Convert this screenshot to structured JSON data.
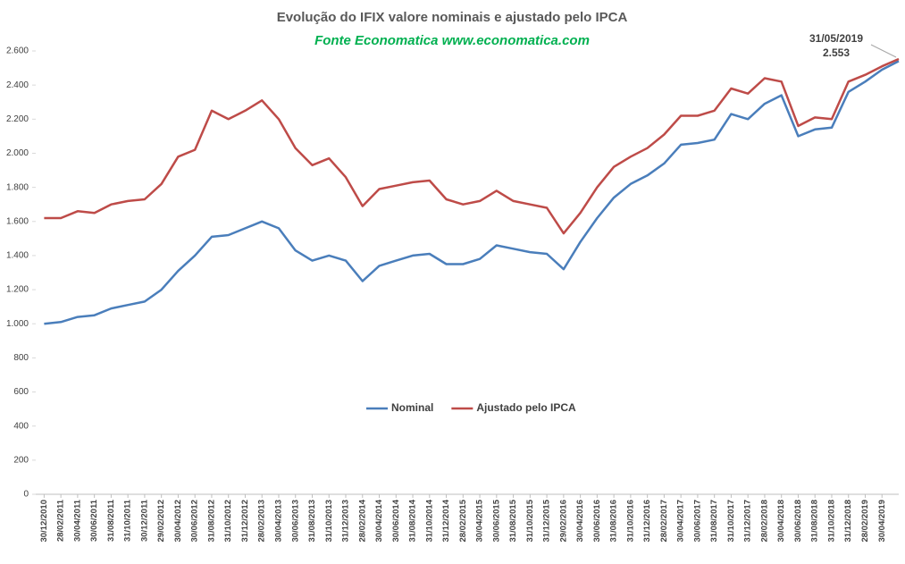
{
  "chart_data": {
    "type": "line",
    "title": "Evolução do IFIX valore nominais e ajustado pelo IPCA",
    "subtitle": "Fonte Economatica www.economatica.com",
    "annotation": {
      "date": "31/05/2019",
      "value": "2.553"
    },
    "categories": [
      "30/12/2010",
      "28/02/2011",
      "30/04/2011",
      "30/06/2011",
      "31/08/2011",
      "31/10/2011",
      "30/12/2011",
      "29/02/2012",
      "30/04/2012",
      "30/06/2012",
      "31/08/2012",
      "31/10/2012",
      "31/12/2012",
      "28/02/2013",
      "30/04/2013",
      "30/06/2013",
      "31/08/2013",
      "31/10/2013",
      "31/12/2013",
      "28/02/2014",
      "30/04/2014",
      "30/06/2014",
      "31/08/2014",
      "31/10/2014",
      "31/12/2014",
      "28/02/2015",
      "30/04/2015",
      "30/06/2015",
      "31/08/2015",
      "31/10/2015",
      "31/12/2015",
      "29/02/2016",
      "30/04/2016",
      "30/06/2016",
      "31/08/2016",
      "31/10/2016",
      "31/12/2016",
      "28/02/2017",
      "30/04/2017",
      "30/06/2017",
      "31/08/2017",
      "31/10/2017",
      "31/12/2017",
      "28/02/2018",
      "30/04/2018",
      "30/06/2018",
      "31/08/2018",
      "31/10/2018",
      "31/12/2018",
      "28/02/2019",
      "30/04/2019",
      null
    ],
    "series": [
      {
        "name": "Nominal",
        "color": "#4a7ebb",
        "values": [
          1000,
          1010,
          1040,
          1050,
          1090,
          1110,
          1130,
          1200,
          1310,
          1400,
          1510,
          1520,
          1560,
          1600,
          1560,
          1430,
          1370,
          1400,
          1370,
          1250,
          1340,
          1370,
          1400,
          1410,
          1350,
          1350,
          1380,
          1460,
          1440,
          1420,
          1410,
          1320,
          1480,
          1620,
          1740,
          1820,
          1870,
          1940,
          2050,
          2060,
          2080,
          2230,
          2200,
          2290,
          2340,
          2100,
          2140,
          2150,
          2360,
          2420,
          2490,
          2540
        ]
      },
      {
        "name": "Ajustado pelo IPCA",
        "color": "#be4b48",
        "values": [
          1620,
          1620,
          1660,
          1650,
          1700,
          1720,
          1730,
          1820,
          1980,
          2020,
          2250,
          2200,
          2250,
          2310,
          2200,
          2030,
          1930,
          1970,
          1860,
          1690,
          1790,
          1810,
          1830,
          1840,
          1730,
          1700,
          1720,
          1780,
          1720,
          1700,
          1680,
          1530,
          1650,
          1800,
          1920,
          1980,
          2030,
          2110,
          2220,
          2220,
          2250,
          2380,
          2350,
          2440,
          2420,
          2160,
          2210,
          2200,
          2420,
          2460,
          2510,
          2553
        ]
      }
    ],
    "ylim": [
      0,
      2600
    ],
    "yticks": [
      0,
      200,
      400,
      600,
      800,
      {
        "value": 1000,
        "label": "1.000"
      },
      {
        "value": 1200,
        "label": "1.200"
      },
      {
        "value": 1400,
        "label": "1.400"
      },
      {
        "value": 1600,
        "label": "1.600"
      },
      {
        "value": 1800,
        "label": "1.800"
      },
      {
        "value": 2000,
        "label": "2.000"
      },
      {
        "value": 2200,
        "label": "2.200"
      },
      {
        "value": 2400,
        "label": "2.400"
      },
      {
        "value": 2600,
        "label": "2.600"
      }
    ],
    "grid": false,
    "legend": "center"
  }
}
